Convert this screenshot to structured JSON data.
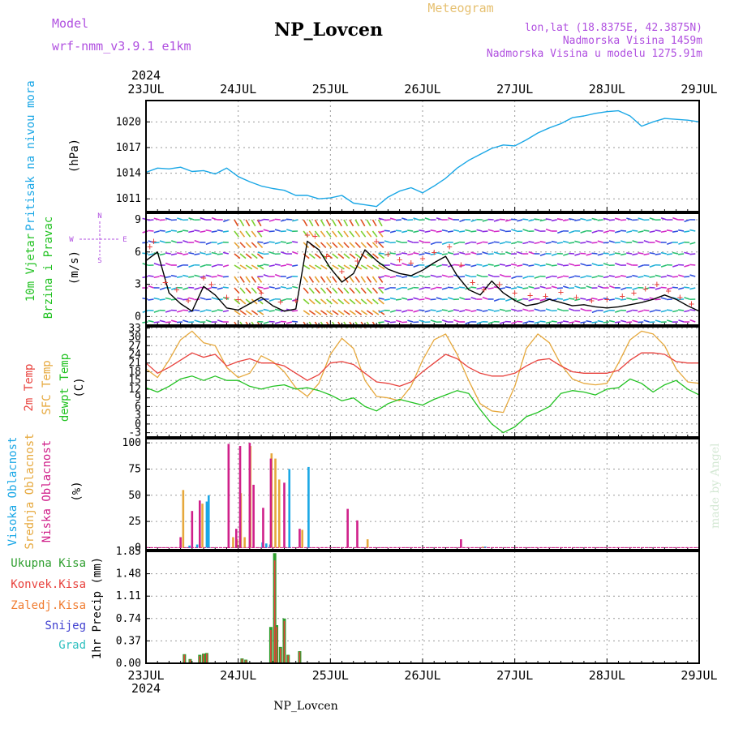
{
  "header": {
    "model_label": "Model",
    "model_value": "wrf-nmm_v3.9.1 e1km",
    "station": "NP_Lovcen",
    "product": "Meteogram",
    "lonlat": "lon,lat (18.8375E, 42.3875N)",
    "elevation": "Nadmorska Visina 1459m",
    "model_elevation": "Nadmorska Visina u modelu 1275.91m",
    "year_top": "2024",
    "year_bottom": "2024",
    "footer_station": "NP_Lovcen",
    "credit": "made by Angel"
  },
  "colors": {
    "pressure": "#1aa7e6",
    "t2m": "#e8413c",
    "sfc": "#e6a83c",
    "dewpt": "#22c222",
    "high_cloud": "#1aa7e6",
    "mid_cloud": "#e6a83c",
    "low_cloud": "#d0208a",
    "total_precip": "#2e9e2e",
    "conv_precip": "#e8413c",
    "frozen_precip": "#f07c30",
    "snow": "#4040d0",
    "hail": "#30c0c0",
    "wind_speed": "#000000",
    "gust_marker": "#e8413c",
    "compass": "#b050e0",
    "panel_label_wind": "#22c222"
  },
  "chart_data": {
    "type": "line",
    "x_axis": {
      "dates": [
        "23JUL",
        "24JUL",
        "25JUL",
        "26JUL",
        "27JUL",
        "28JUL",
        "29JUL"
      ],
      "range_hours": [
        0,
        144
      ]
    },
    "panels": {
      "pressure": {
        "label": "Pritisak na nivou mora",
        "unit": "(hPa)",
        "ticks": [
          1011,
          1014,
          1017,
          1020
        ],
        "ylim": [
          1009.5,
          1022.5
        ],
        "series": [
          {
            "name": "pressure",
            "x": [
              0,
              3,
              6,
              9,
              12,
              15,
              18,
              21,
              24,
              27,
              30,
              33,
              36,
              39,
              42,
              45,
              48,
              51,
              54,
              57,
              60,
              63,
              66,
              69,
              72,
              75,
              78,
              81,
              84,
              87,
              90,
              93,
              96,
              99,
              102,
              105,
              108,
              111,
              114,
              117,
              120,
              123,
              126,
              129,
              132,
              135,
              138,
              141,
              144
            ],
            "y": [
              1014.1,
              1014.6,
              1014.5,
              1014.7,
              1014.2,
              1014.3,
              1013.9,
              1014.6,
              1013.6,
              1013.0,
              1012.5,
              1012.2,
              1012.0,
              1011.4,
              1011.4,
              1011.0,
              1011.1,
              1011.4,
              1010.5,
              1010.3,
              1010.1,
              1011.2,
              1011.9,
              1012.3,
              1011.7,
              1012.5,
              1013.4,
              1014.6,
              1015.5,
              1016.2,
              1016.9,
              1017.3,
              1017.2,
              1017.9,
              1018.7,
              1019.3,
              1019.8,
              1020.5,
              1020.7,
              1021.0,
              1021.2,
              1021.3,
              1020.7,
              1019.5,
              1020.0,
              1020.4,
              1020.3,
              1020.2,
              1020.0
            ]
          }
        ]
      },
      "wind": {
        "label_1": "10m Vjetar",
        "label_2": "Brzina i Pravac",
        "unit": "(m/s)",
        "compass": [
          "N",
          "W",
          "E",
          "S"
        ],
        "ticks": [
          0,
          3,
          6,
          9
        ],
        "ylim": [
          -0.8,
          9.6
        ],
        "series": [
          {
            "name": "speed",
            "x": [
              0,
              3,
              6,
              9,
              12,
              15,
              18,
              21,
              24,
              27,
              30,
              33,
              36,
              39,
              42,
              45,
              48,
              51,
              54,
              57,
              60,
              63,
              66,
              69,
              72,
              75,
              78,
              81,
              84,
              87,
              90,
              93,
              96,
              99,
              102,
              105,
              108,
              111,
              114,
              117,
              120,
              123,
              126,
              129,
              132,
              135,
              138,
              141,
              144
            ],
            "y": [
              5.2,
              6.0,
              2.2,
              1.2,
              0.5,
              2.8,
              2.0,
              0.8,
              0.6,
              1.2,
              1.8,
              1.0,
              0.5,
              0.7,
              7.0,
              6.2,
              4.5,
              3.2,
              4.0,
              6.2,
              5.2,
              4.4,
              4.0,
              3.8,
              4.3,
              5.0,
              5.6,
              3.8,
              2.5,
              2.0,
              3.3,
              2.2,
              1.5,
              1.0,
              1.2,
              1.6,
              1.3,
              1.0,
              1.1,
              0.9,
              0.8,
              0.9,
              1.1,
              1.3,
              1.6,
              2.0,
              1.6,
              1.0,
              0.5
            ]
          },
          {
            "name": "gusts",
            "x": [
              1,
              2,
              5,
              8,
              11,
              15,
              17,
              21,
              24,
              30,
              35,
              39,
              42,
              44,
              47,
              51,
              55,
              60,
              63,
              66,
              69,
              72,
              75,
              79,
              82,
              85,
              88,
              92,
              96,
              100,
              104,
              108,
              112,
              116,
              120,
              124,
              127,
              130,
              133,
              136,
              139,
              142
            ],
            "y": [
              6.5,
              7.0,
              3.2,
              2.5,
              1.5,
              3.6,
              3.0,
              1.8,
              1.6,
              2.2,
              1.4,
              1.5,
              7.6,
              7.5,
              5.6,
              4.2,
              5.2,
              7.0,
              5.8,
              5.3,
              5.0,
              5.4,
              6.0,
              6.5,
              4.8,
              3.2,
              2.5,
              3.0,
              2.2,
              2.0,
              1.9,
              2.3,
              1.8,
              1.5,
              1.6,
              1.9,
              2.2,
              2.6,
              3.0,
              2.4,
              1.8,
              1.2
            ]
          }
        ]
      },
      "temperature": {
        "label_t2m": "2m Temp",
        "label_sfc": "SFC Temp",
        "label_dewpt": "dewpt Temp",
        "unit": "(C)",
        "ticks": [
          -3,
          0,
          3,
          6,
          9,
          12,
          15,
          18,
          21,
          24,
          27,
          30,
          33
        ],
        "ylim": [
          -4.5,
          33.5
        ],
        "series": [
          {
            "name": "t2m",
            "x": [
              0,
              3,
              6,
              9,
              12,
              15,
              18,
              21,
              24,
              27,
              30,
              33,
              36,
              39,
              42,
              45,
              48,
              51,
              54,
              57,
              60,
              63,
              66,
              69,
              72,
              75,
              78,
              81,
              84,
              87,
              90,
              93,
              96,
              99,
              102,
              105,
              108,
              111,
              114,
              117,
              120,
              123,
              126,
              129,
              132,
              135,
              138,
              141,
              144
            ],
            "y": [
              21.0,
              17.5,
              19.5,
              22.0,
              24.5,
              23.0,
              24.0,
              20.0,
              21.5,
              22.5,
              21.0,
              21.0,
              20.0,
              17.5,
              15.0,
              17.0,
              21.0,
              21.5,
              20.5,
              17.5,
              14.5,
              14.0,
              13.0,
              14.5,
              18.0,
              21.0,
              24.0,
              22.5,
              19.5,
              17.5,
              16.5,
              16.5,
              17.5,
              20.0,
              22.0,
              22.5,
              20.0,
              18.0,
              17.5,
              17.5,
              17.5,
              18.5,
              22.0,
              24.5,
              24.5,
              24.0,
              21.5,
              21.0,
              21.0
            ]
          },
          {
            "name": "sfc",
            "x": [
              0,
              3,
              6,
              9,
              12,
              15,
              18,
              21,
              24,
              27,
              30,
              33,
              36,
              39,
              42,
              45,
              48,
              51,
              54,
              57,
              60,
              63,
              66,
              69,
              72,
              75,
              78,
              81,
              84,
              87,
              90,
              93,
              96,
              99,
              102,
              105,
              108,
              111,
              114,
              117,
              120,
              123,
              126,
              129,
              132,
              135,
              138,
              141,
              144
            ],
            "y": [
              19.0,
              16.0,
              22.0,
              29.0,
              32.0,
              28.0,
              27.0,
              19.5,
              16.0,
              17.5,
              23.5,
              21.5,
              18.0,
              12.5,
              9.5,
              14.0,
              24.0,
              29.5,
              26.0,
              15.0,
              9.5,
              9.0,
              8.0,
              13.0,
              22.0,
              29.0,
              31.0,
              24.0,
              15.0,
              7.0,
              4.5,
              4.0,
              13.0,
              26.0,
              31.0,
              28.0,
              20.5,
              15.5,
              14.0,
              13.5,
              14.0,
              21.0,
              29.0,
              32.0,
              31.0,
              27.0,
              19.0,
              14.5,
              14.0
            ]
          },
          {
            "name": "dewpt",
            "x": [
              0,
              3,
              6,
              9,
              12,
              15,
              18,
              21,
              24,
              27,
              30,
              33,
              36,
              39,
              42,
              45,
              48,
              51,
              54,
              57,
              60,
              63,
              66,
              69,
              72,
              75,
              78,
              81,
              84,
              87,
              90,
              93,
              96,
              99,
              102,
              105,
              108,
              111,
              114,
              117,
              120,
              123,
              126,
              129,
              132,
              135,
              138,
              141,
              144
            ],
            "y": [
              12.5,
              11.0,
              13.0,
              15.5,
              16.5,
              15.0,
              16.5,
              15.0,
              15.0,
              13.0,
              12.0,
              13.0,
              13.5,
              12.0,
              12.5,
              11.5,
              10.0,
              8.0,
              9.0,
              6.0,
              4.5,
              7.0,
              8.5,
              7.5,
              6.5,
              8.5,
              10.0,
              11.5,
              10.5,
              5.0,
              0.0,
              -3.0,
              -1.0,
              2.5,
              4.0,
              6.0,
              10.5,
              11.5,
              11.0,
              10.0,
              12.0,
              12.5,
              15.5,
              14.0,
              11.0,
              13.5,
              15.0,
              12.0,
              10.0
            ]
          }
        ]
      },
      "clouds": {
        "label_high": "Visoka Oblacnost",
        "label_mid": "Srednja Oblacnost",
        "label_low": "Niska Oblacnost",
        "unit": "(%)",
        "ticks": [
          0,
          25,
          50,
          75,
          100
        ],
        "ylim": [
          -2,
          104
        ],
        "series": [
          {
            "name": "high",
            "x": [
              11,
              13,
              15.5,
              16,
              30,
              31,
              32,
              37,
              42,
              88
            ],
            "y": [
              2,
              3,
              44,
              50,
              5,
              4,
              3,
              75,
              77,
              1
            ]
          },
          {
            "name": "mid",
            "x": [
              10,
              15,
              23,
              24,
              25,
              26,
              27.5,
              33,
              34,
              35,
              41,
              58,
              88
            ],
            "y": [
              55,
              42,
              10,
              8,
              52,
              10,
              97,
              90,
              85,
              65,
              17,
              8,
              1
            ]
          },
          {
            "name": "low",
            "x": [
              9,
              12,
              14,
              21.5,
              23.5,
              24.5,
              27,
              28,
              30.5,
              32.5,
              36,
              40,
              52.5,
              55,
              82
            ],
            "y": [
              10,
              35,
              45,
              99,
              18,
              97,
              100,
              60,
              38,
              85,
              62,
              18,
              37,
              26,
              8
            ]
          }
        ]
      },
      "precip": {
        "label_total": "Ukupna Kisa",
        "label_conv": "Konvek.Kisa",
        "label_frozen": "Zaledj.Kisa",
        "label_snow": "Snijeg",
        "label_hail": "Grad",
        "unit": "1hr Precip (mm)",
        "ticks": [
          0,
          0.37,
          0.74,
          1.11,
          1.48,
          1.85
        ],
        "ylim": [
          0,
          1.85
        ],
        "series": [
          {
            "name": "total",
            "x": [
              10,
              11.5,
              14,
              15,
              15.8,
              25,
              26,
              32.5,
              33.5,
              34,
              35,
              36,
              37,
              40
            ],
            "y": [
              0.15,
              0.07,
              0.14,
              0.16,
              0.17,
              0.08,
              0.06,
              0.6,
              1.82,
              0.63,
              0.27,
              0.74,
              0.14,
              0.2
            ]
          },
          {
            "name": "convective",
            "x": [
              10,
              11.5,
              14,
              15,
              15.8,
              25,
              26,
              32.5,
              33.5,
              34,
              35,
              36,
              37,
              40
            ],
            "y": [
              0.14,
              0.06,
              0.12,
              0.15,
              0.16,
              0.07,
              0.05,
              0.55,
              1.7,
              0.6,
              0.25,
              0.7,
              0.13,
              0.19
            ]
          }
        ]
      }
    }
  }
}
